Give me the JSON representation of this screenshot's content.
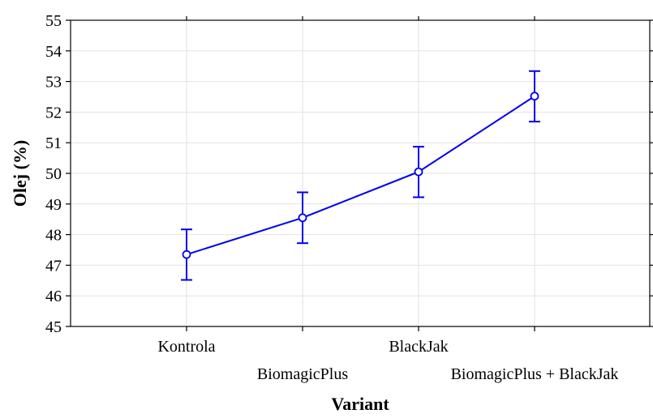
{
  "chart_data": {
    "type": "line",
    "xlabel": "Variant",
    "ylabel": "Olej (%)",
    "ylim": [
      45,
      55
    ],
    "yticks": [
      45,
      46,
      47,
      48,
      49,
      50,
      51,
      52,
      53,
      54,
      55
    ],
    "categories": [
      "Kontrola",
      "BiomagicPlus",
      "BlackJak",
      "BiomagicPlus + BlackJak"
    ],
    "series": [
      {
        "values": [
          47.35,
          48.55,
          50.05,
          52.52
        ],
        "lower": [
          46.52,
          47.72,
          49.22,
          51.69
        ],
        "upper": [
          48.17,
          49.38,
          50.87,
          53.34
        ]
      }
    ],
    "grid": true,
    "color": "#0000ee"
  }
}
